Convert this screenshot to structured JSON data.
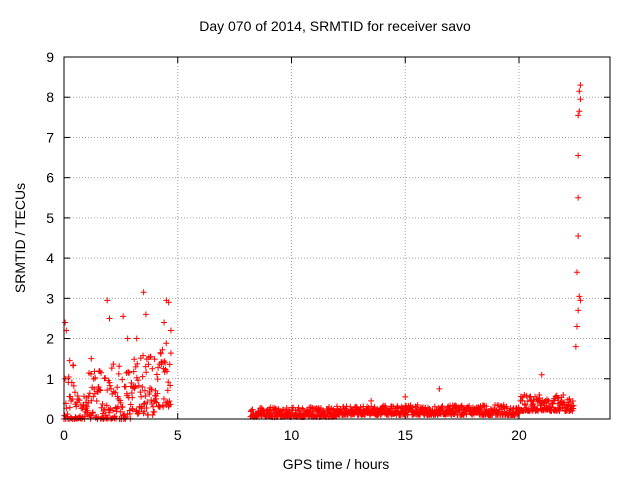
{
  "chart_data": {
    "type": "scatter",
    "title": "Day 070 of 2014, SRMTID for receiver savo",
    "xlabel": "GPS time / hours",
    "ylabel": "SRMTID / TECUs",
    "xlim": [
      0,
      24
    ],
    "ylim": [
      0,
      9
    ],
    "x_ticks": [
      0,
      5,
      10,
      15,
      20
    ],
    "y_ticks": [
      0,
      1,
      2,
      3,
      4,
      5,
      6,
      7,
      8,
      9
    ],
    "grid": true,
    "marker": "+",
    "color": "#ff0000",
    "series": [
      {
        "name": "SRMTID",
        "segments": [
          {
            "x_start": 0.0,
            "x_end": 0.5,
            "y_min": 0.0,
            "y_max": 1.6
          },
          {
            "x_start": 0.5,
            "x_end": 1.0,
            "y_min": 0.0,
            "y_max": 0.6
          },
          {
            "x_start": 1.0,
            "x_end": 2.0,
            "y_min": 0.0,
            "y_max": 1.2
          },
          {
            "x_start": 2.0,
            "x_end": 3.0,
            "y_min": 0.0,
            "y_max": 1.4
          },
          {
            "x_start": 3.0,
            "x_end": 4.0,
            "y_min": 0.1,
            "y_max": 1.6
          },
          {
            "x_start": 4.0,
            "x_end": 4.7,
            "y_min": 0.3,
            "y_max": 1.9
          },
          {
            "x_start": 8.2,
            "x_end": 12.0,
            "y_min": 0.05,
            "y_max": 0.3
          },
          {
            "x_start": 12.0,
            "x_end": 16.0,
            "y_min": 0.1,
            "y_max": 0.35
          },
          {
            "x_start": 16.0,
            "x_end": 20.0,
            "y_min": 0.1,
            "y_max": 0.35
          },
          {
            "x_start": 20.0,
            "x_end": 22.4,
            "y_min": 0.2,
            "y_max": 0.6
          }
        ],
        "outliers": [
          [
            0.05,
            2.4
          ],
          [
            0.1,
            2.2
          ],
          [
            0.25,
            1.45
          ],
          [
            1.2,
            1.5
          ],
          [
            1.9,
            2.95
          ],
          [
            2.0,
            2.5
          ],
          [
            2.6,
            2.55
          ],
          [
            2.8,
            2.0
          ],
          [
            3.2,
            2.0
          ],
          [
            3.5,
            3.15
          ],
          [
            3.6,
            2.6
          ],
          [
            4.4,
            2.4
          ],
          [
            4.5,
            2.95
          ],
          [
            4.6,
            2.9
          ],
          [
            4.7,
            2.2
          ],
          [
            1.5,
            0.05
          ],
          [
            16.5,
            0.75
          ],
          [
            13.5,
            0.45
          ],
          [
            15.0,
            0.55
          ],
          [
            21.0,
            1.1
          ],
          [
            22.5,
            1.8
          ],
          [
            22.55,
            2.3
          ],
          [
            22.6,
            2.7
          ],
          [
            22.65,
            3.05
          ],
          [
            22.7,
            2.95
          ],
          [
            22.55,
            3.65
          ],
          [
            22.6,
            4.55
          ],
          [
            22.6,
            5.5
          ],
          [
            22.6,
            6.55
          ],
          [
            22.6,
            7.55
          ],
          [
            22.65,
            7.65
          ],
          [
            22.7,
            7.95
          ],
          [
            22.65,
            8.15
          ],
          [
            22.7,
            8.3
          ]
        ]
      }
    ]
  }
}
